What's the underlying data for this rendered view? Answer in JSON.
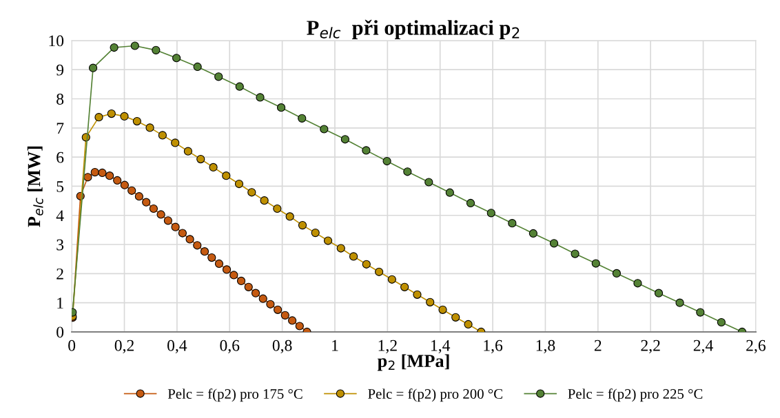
{
  "chart_data": {
    "type": "line",
    "title": "P$_{elc}$  při optimalizaci p$_{2}$",
    "xlabel": "p$_{2}$ [MPa]",
    "ylabel": "P$_{elc}$ [MW]",
    "xlim": [
      0,
      2.6
    ],
    "ylim": [
      0,
      10
    ],
    "xticks": [
      0,
      {
        "value": 0.2,
        "label": "0,2"
      },
      {
        "value": 0.4,
        "label": "0,4"
      },
      {
        "value": 0.6,
        "label": "0,6"
      },
      {
        "value": 0.8,
        "label": "0,8"
      },
      1,
      {
        "value": 1.2,
        "label": "1,2"
      },
      {
        "value": 1.4,
        "label": "1,4"
      },
      {
        "value": 1.6,
        "label": "1,6"
      },
      {
        "value": 1.8,
        "label": "1,8"
      },
      2,
      {
        "value": 2.2,
        "label": "2,2"
      },
      {
        "value": 2.4,
        "label": "2,4"
      },
      {
        "value": 2.6,
        "label": "2,6"
      }
    ],
    "yticks": [
      0,
      1,
      2,
      3,
      4,
      5,
      6,
      7,
      8,
      9,
      10
    ],
    "grid": true,
    "legend": "bottom",
    "marker": "circle",
    "line_style": "solid",
    "series": [
      {
        "name": "Pelc = f(p2) pro 175 °C",
        "color": "#c55a11",
        "x": [
          0.003,
          0.033,
          0.061,
          0.088,
          0.116,
          0.144,
          0.173,
          0.201,
          0.228,
          0.256,
          0.283,
          0.311,
          0.339,
          0.366,
          0.394,
          0.421,
          0.449,
          0.477,
          0.505,
          0.532,
          0.56,
          0.589,
          0.616,
          0.644,
          0.672,
          0.699,
          0.727,
          0.755,
          0.783,
          0.811,
          0.838,
          0.866,
          0.894
        ],
        "values": [
          0.49,
          4.66,
          5.31,
          5.48,
          5.46,
          5.36,
          5.2,
          5.04,
          4.85,
          4.65,
          4.45,
          4.23,
          4.03,
          3.82,
          3.6,
          3.39,
          3.18,
          2.97,
          2.76,
          2.55,
          2.34,
          2.14,
          1.95,
          1.75,
          1.54,
          1.33,
          1.14,
          0.95,
          0.76,
          0.57,
          0.39,
          0.2,
          0
        ]
      },
      {
        "name": "Pelc = f(p2) pro 200 °C",
        "color": "#bf9000",
        "x": [
          0.003,
          0.054,
          0.103,
          0.151,
          0.2,
          0.248,
          0.297,
          0.345,
          0.393,
          0.442,
          0.49,
          0.538,
          0.587,
          0.636,
          0.684,
          0.732,
          0.781,
          0.829,
          0.877,
          0.926,
          0.974,
          1.023,
          1.071,
          1.12,
          1.168,
          1.217,
          1.265,
          1.313,
          1.362,
          1.41,
          1.459,
          1.507,
          1.556
        ],
        "values": [
          0.53,
          6.68,
          7.37,
          7.49,
          7.4,
          7.23,
          7.01,
          6.75,
          6.49,
          6.2,
          5.93,
          5.65,
          5.36,
          5.08,
          4.79,
          4.51,
          4.23,
          3.96,
          3.66,
          3.4,
          3.13,
          2.87,
          2.59,
          2.32,
          2.06,
          1.8,
          1.54,
          1.28,
          1.02,
          0.76,
          0.5,
          0.26,
          0
        ]
      },
      {
        "name": "Pelc = f(p2) pro 225 °C",
        "color": "#548235",
        "x": [
          0.003,
          0.081,
          0.161,
          0.24,
          0.32,
          0.398,
          0.478,
          0.558,
          0.638,
          0.716,
          0.796,
          0.875,
          0.959,
          1.039,
          1.119,
          1.198,
          1.276,
          1.357,
          1.437,
          1.516,
          1.594,
          1.674,
          1.754,
          1.833,
          1.913,
          1.992,
          2.071,
          2.151,
          2.231,
          2.311,
          2.389,
          2.469,
          2.548
        ],
        "values": [
          0.67,
          9.06,
          9.76,
          9.82,
          9.67,
          9.4,
          9.1,
          8.76,
          8.42,
          8.05,
          7.7,
          7.33,
          6.96,
          6.61,
          6.23,
          5.86,
          5.5,
          5.14,
          4.78,
          4.42,
          4.08,
          3.73,
          3.38,
          3.04,
          2.68,
          2.35,
          2.01,
          1.67,
          1.33,
          1.0,
          0.67,
          0.33,
          0
        ]
      }
    ]
  }
}
